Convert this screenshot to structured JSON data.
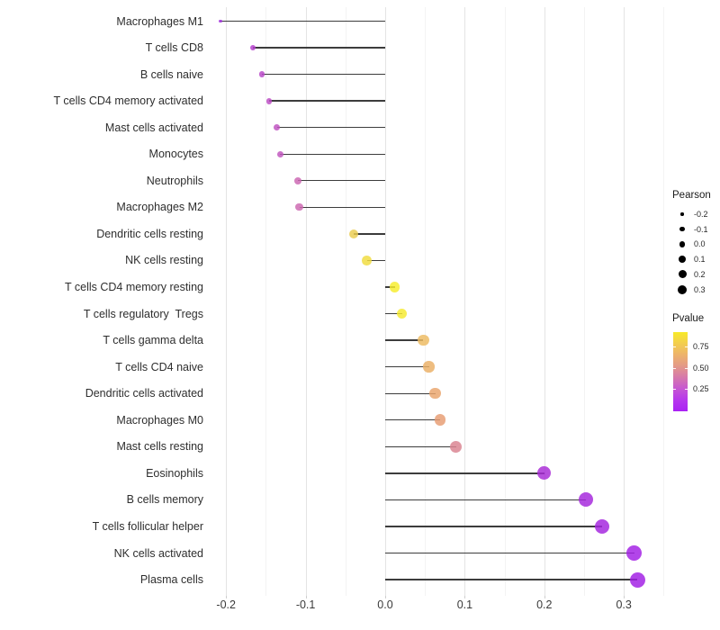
{
  "chart_data": {
    "type": "lollipop",
    "orientation": "horizontal",
    "title": "",
    "xlabel": "",
    "ylabel": "",
    "categories": [
      "Macrophages M1",
      "T cells CD8",
      "B cells naive",
      "T cells CD4 memory activated",
      "Mast cells activated",
      "Monocytes",
      "Neutrophils",
      "Macrophages M2",
      "Dendritic cells resting",
      "NK cells resting",
      "T cells CD4 memory resting",
      "T cells regulatory  Tregs",
      "T cells gamma delta",
      "T cells CD4 naive",
      "Dendritic cells activated",
      "Macrophages M0",
      "Mast cells resting",
      "Eosinophils",
      "B cells memory",
      "T cells follicular helper",
      "NK cells activated",
      "Plasma cells"
    ],
    "series": [
      {
        "name": "Pearson",
        "values": [
          -0.207,
          -0.166,
          -0.155,
          -0.146,
          -0.136,
          -0.132,
          -0.11,
          -0.108,
          -0.04,
          -0.023,
          0.012,
          0.021,
          0.048,
          0.055,
          0.063,
          0.069,
          0.089,
          0.2,
          0.252,
          0.273,
          0.313,
          0.317
        ]
      }
    ],
    "point_colors": [
      "#9F2BDB",
      "#B440CC",
      "#B846C8",
      "#BC4CC4",
      "#BF52C0",
      "#C156BE",
      "#CB66B2",
      "#CC68B1",
      "#EBCD50",
      "#F0DC3F",
      "#F6ED2D",
      "#F5E930",
      "#EDBA62",
      "#EBB066",
      "#E9A56C",
      "#E79C72",
      "#DA8390",
      "#A82BD6",
      "#A527DC",
      "#A424DE",
      "#A21FE4",
      "#A11EE5"
    ],
    "x_ticks": [
      "-0.2",
      "-0.1",
      "0.0",
      "0.1",
      "0.2",
      "0.3"
    ],
    "x_tick_values": [
      -0.2,
      -0.1,
      0.0,
      0.1,
      0.2,
      0.3
    ],
    "x_minor_values": [
      -0.15,
      -0.05,
      0.05,
      0.15,
      0.25,
      0.35
    ],
    "xlim": [
      -0.235,
      0.345
    ],
    "grid": "vertical major and minor, light gray, white background",
    "stem_color": "#3c3c3c",
    "legend": {
      "size_legend": {
        "title": "Pearson",
        "labels": [
          "-0.2",
          "-0.1",
          "0.0",
          "0.1",
          "0.2",
          "0.3"
        ],
        "values": [
          -0.2,
          -0.1,
          0.0,
          0.1,
          0.2,
          0.3
        ],
        "dot_color": "#000000"
      },
      "color_legend": {
        "title": "Pvalue",
        "labels": [
          "0.75",
          "0.50",
          "0.25"
        ],
        "label_values": [
          0.75,
          0.5,
          0.25
        ],
        "gradient_stops": [
          "#F7EA28",
          "#F3CE4E",
          "#EDB36B",
          "#E39988",
          "#D679AB",
          "#C657D2",
          "#B637EC",
          "#AA22F4"
        ]
      },
      "position": "right"
    }
  }
}
